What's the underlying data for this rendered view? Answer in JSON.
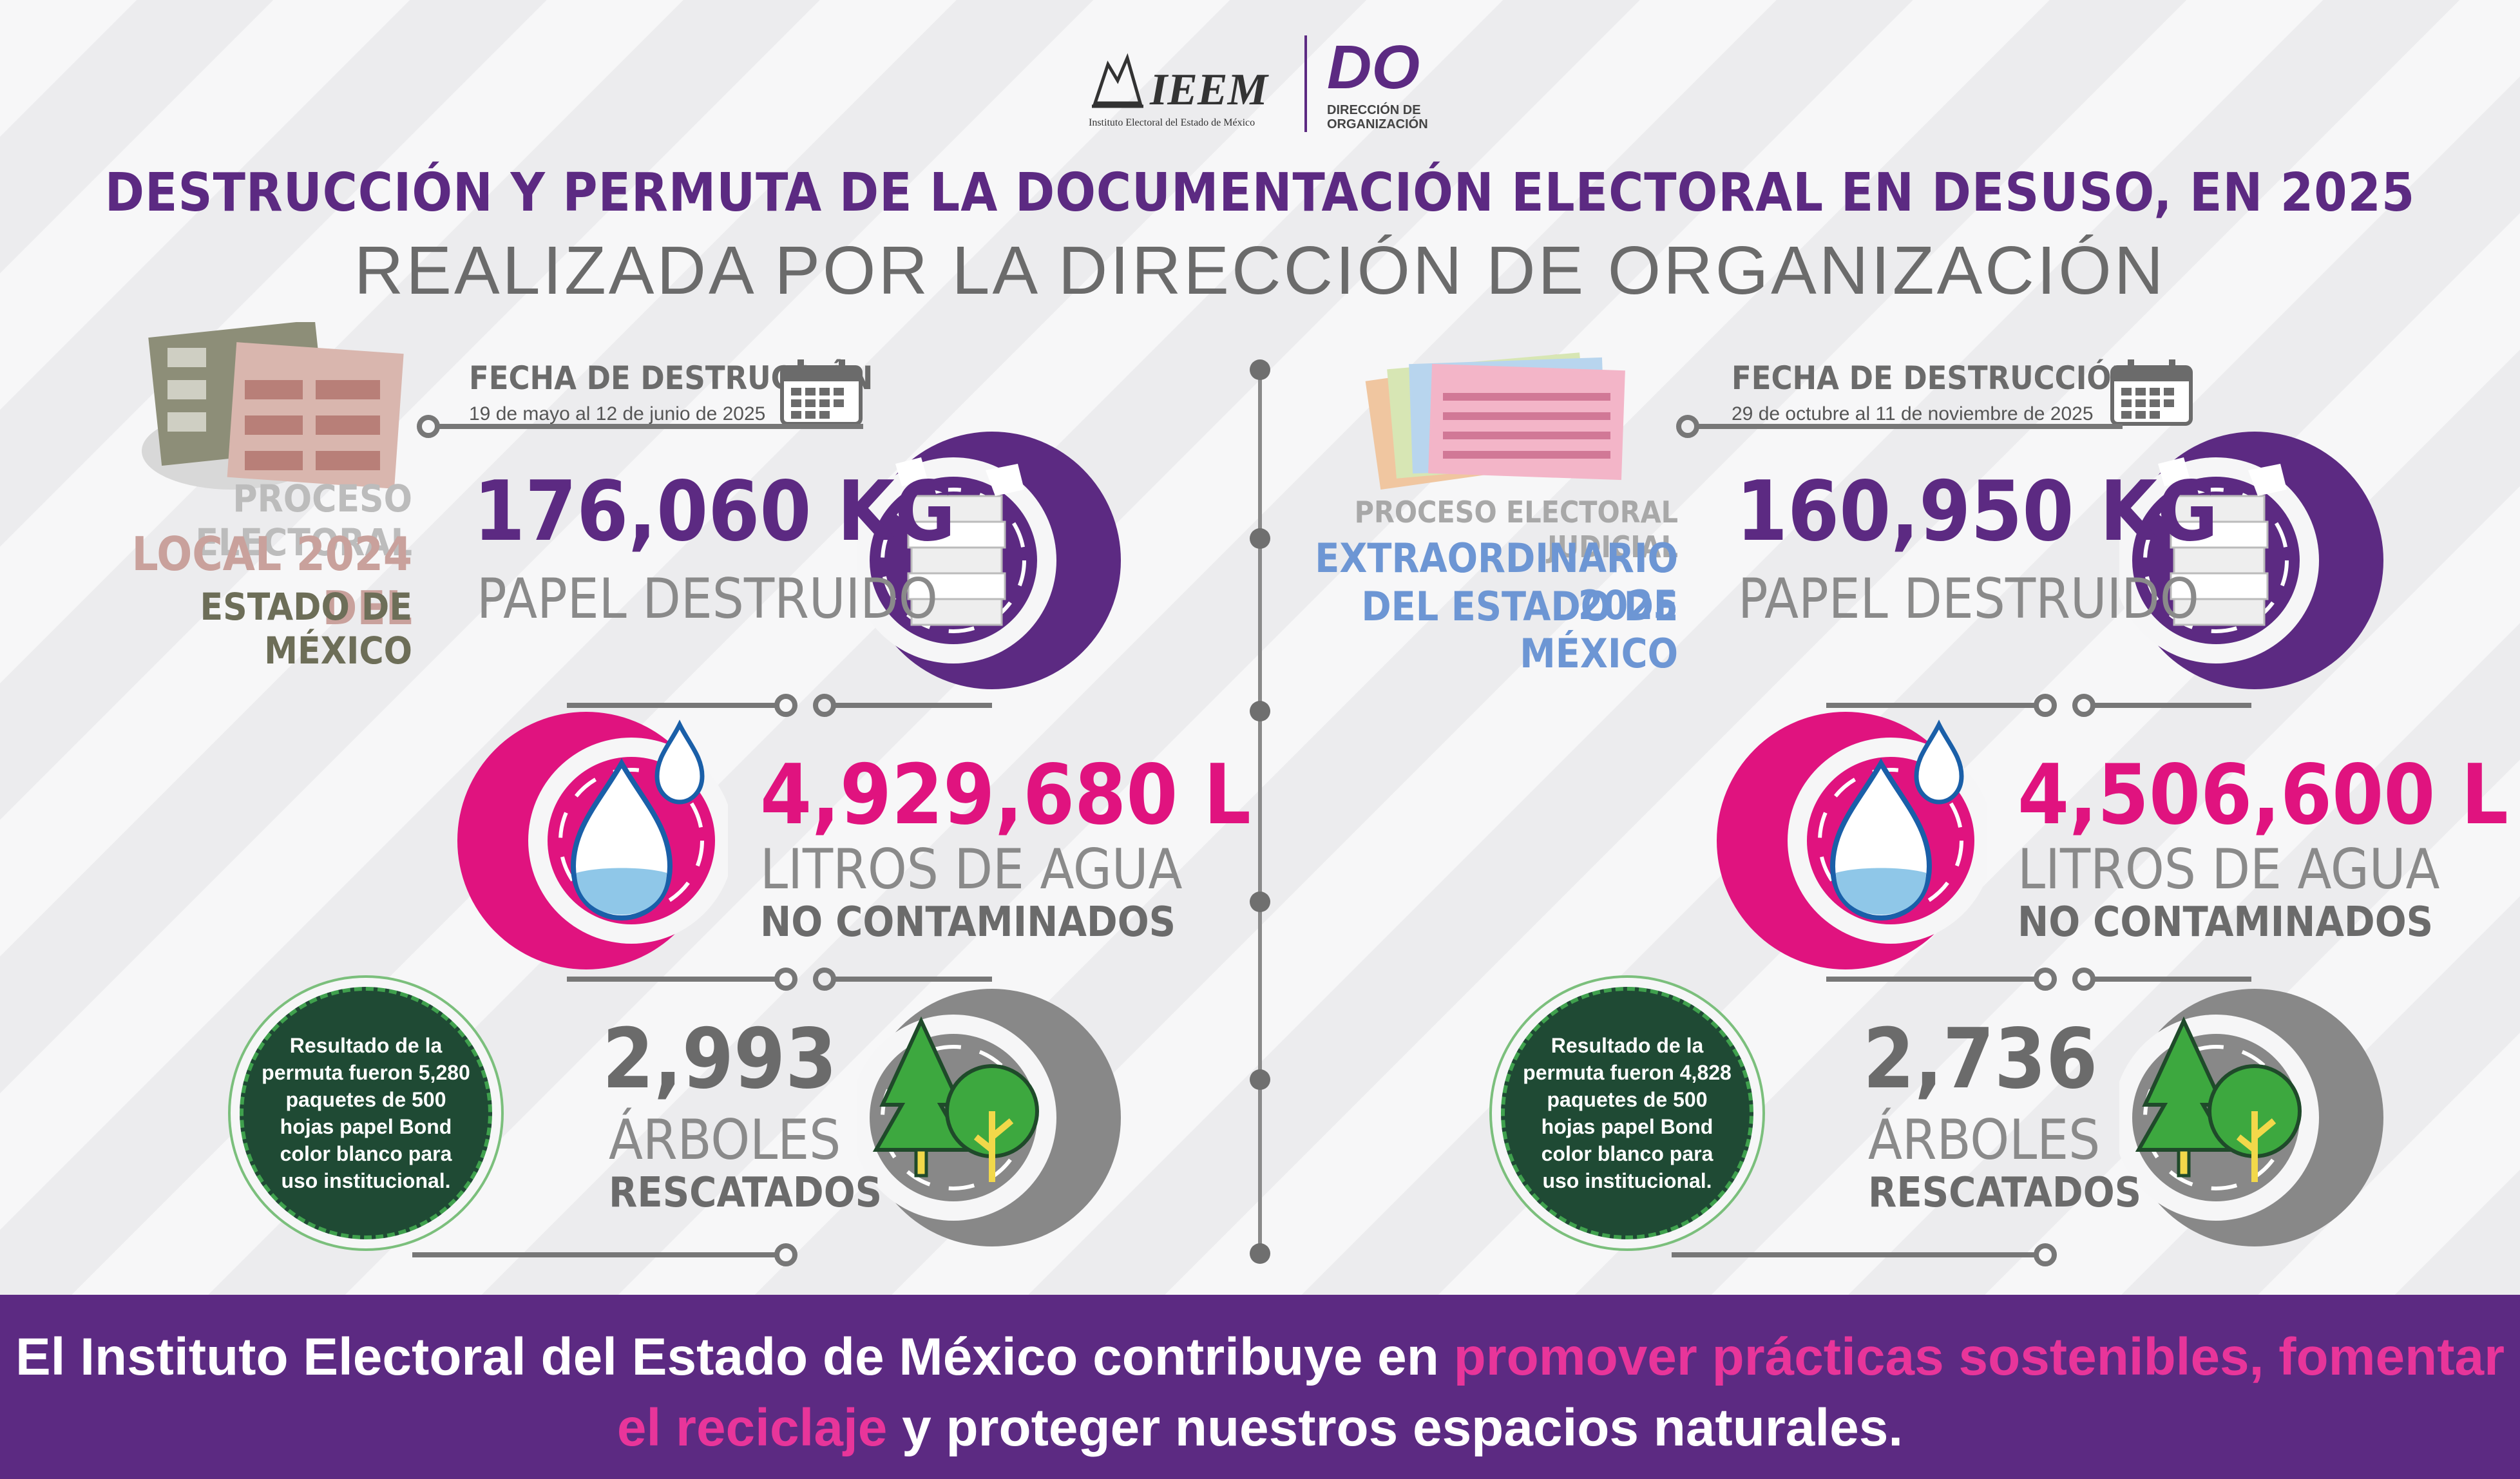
{
  "header": {
    "ieem_logo_text": "IEEM",
    "ieem_logo_subtitle": "Instituto Electoral del Estado de México",
    "do_logo_text": "DO",
    "do_logo_subtitle_1": "DIRECCIÓN DE",
    "do_logo_subtitle_2": "ORGANIZACIÓN",
    "title": "DESTRUCCIÓN Y PERMUTA DE LA DOCUMENTACIÓN ELECTORAL EN DESUSO, EN 2025",
    "subtitle": "REALIZADA POR LA DIRECCIÓN DE ORGANIZACIÓN"
  },
  "left": {
    "process_line1": "PROCESO ELECTORAL",
    "process_line2": "LOCAL 2024 DEL",
    "process_line3": "ESTADO DE MÉXICO",
    "fecha_label": "FECHA DE DESTRUCCIÓN",
    "fecha": "19 de mayo al 12 de junio de 2025",
    "paper_value": "176,060 KG",
    "paper_label": "PAPEL DESTRUIDO",
    "water_value": "4,929,680 L",
    "water_label": "LITROS DE AGUA",
    "water_label2": "NO CONTAMINADOS",
    "trees_value": "2,993",
    "trees_label": "ÁRBOLES",
    "trees_label2": "RESCATADOS",
    "badge_text": "Resultado de la permuta fueron 5,280 paquetes de 500 hojas papel Bond color blanco para uso institucional."
  },
  "right": {
    "process_line1": "PROCESO ELECTORAL JUDICIAL",
    "process_line2": "EXTRAORDINARIO 2025",
    "process_line3": "DEL ESTADO DE MÉXICO",
    "fecha_label": "FECHA DE DESTRUCCIÓN",
    "fecha": "29 de octubre al 11 de noviembre de 2025",
    "paper_value": "160,950 KG",
    "paper_label": "PAPEL DESTRUIDO",
    "water_value": "4,506,600 L",
    "water_label": "LITROS DE AGUA",
    "water_label2": "NO CONTAMINADOS",
    "trees_value": "2,736",
    "trees_label": "ÁRBOLES",
    "trees_label2": "RESCATADOS",
    "badge_text": "Resultado de la permuta fueron 4,828 paquetes de 500 hojas papel Bond color blanco para uso institucional."
  },
  "footer": {
    "part1": "El Instituto Electoral del Estado de México contribuye en ",
    "highlight1": "promover prácticas sostenibles, fomentar el reciclaje",
    "part2": " y proteger nuestros espacios naturales."
  },
  "colors": {
    "purple": "#5c2a82",
    "pink": "#e0137f",
    "gray": "#6b6b6b",
    "green": "#1f4a34",
    "left_process_pink": "#c9a19c",
    "left_process_olive": "#6d6e58",
    "right_process_blue": "#6d96d4"
  },
  "icons": [
    "calendar-icon",
    "paper-stack-icon",
    "water-drop-icon",
    "trees-icon",
    "ballot-documents-icon"
  ]
}
